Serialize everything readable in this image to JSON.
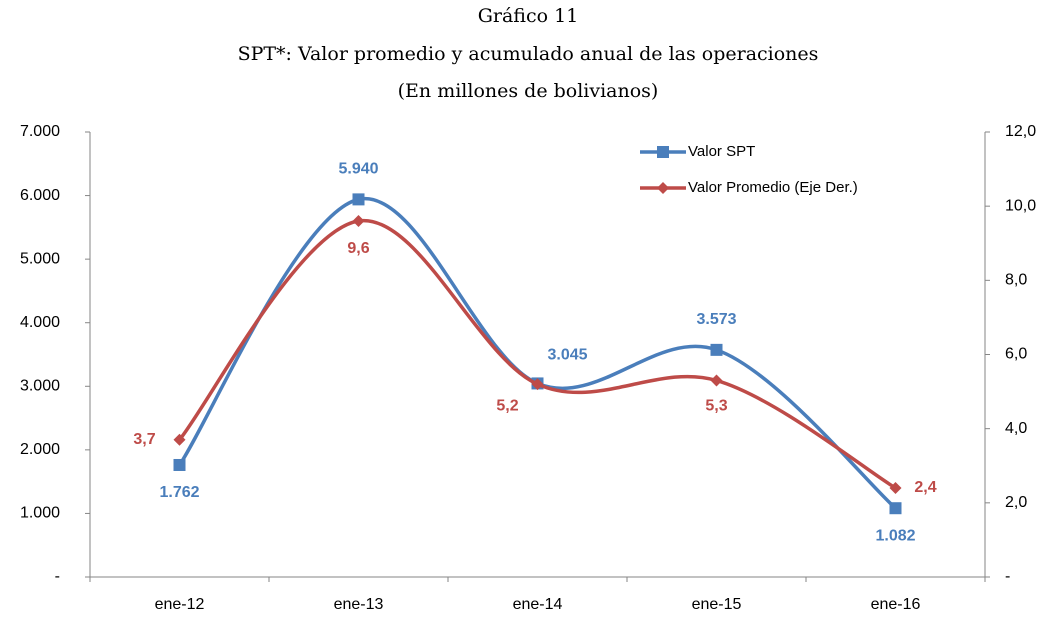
{
  "chart_data": {
    "type": "line",
    "title": "Gráfico 11",
    "subtitle": "SPT*: Valor promedio y acumulado anual de las operaciones",
    "unit_label": "(En millones de bolivianos)",
    "categories": [
      "ene-12",
      "ene-13",
      "ene-14",
      "ene-15",
      "ene-16"
    ],
    "series": [
      {
        "name": "Valor SPT",
        "color": "#4a7ebb",
        "marker": "square",
        "values": [
          1762,
          5940,
          3045,
          3573,
          1082
        ],
        "value_labels": [
          "1.762",
          "5.940",
          "3.045",
          "3.573",
          "1.082"
        ]
      },
      {
        "name": "Valor Promedio (Eje Der.)",
        "color": "#be4b48",
        "marker": "diamond",
        "axis": "y2",
        "values": [
          3.7,
          9.6,
          5.2,
          5.3,
          2.4
        ],
        "value_labels": [
          "3,7",
          "9,6",
          "5,2",
          "5,3",
          "2,4"
        ]
      }
    ],
    "ylim": [
      0,
      7000
    ],
    "yticks": [
      {
        "value": 0,
        "label": "-"
      },
      {
        "value": 1000,
        "label": "1.000"
      },
      {
        "value": 2000,
        "label": "2.000"
      },
      {
        "value": 3000,
        "label": "3.000"
      },
      {
        "value": 4000,
        "label": "4.000"
      },
      {
        "value": 5000,
        "label": "5.000"
      },
      {
        "value": 6000,
        "label": "6.000"
      },
      {
        "value": 7000,
        "label": "7.000"
      }
    ],
    "y2lim": [
      0,
      12
    ],
    "y2ticks": [
      {
        "value": 0,
        "label": "-"
      },
      {
        "value": 2,
        "label": "2,0"
      },
      {
        "value": 4,
        "label": "4,0"
      },
      {
        "value": 6,
        "label": "6,0"
      },
      {
        "value": 8,
        "label": "8,0"
      },
      {
        "value": 10,
        "label": "10,0"
      },
      {
        "value": 12,
        "label": "12,0"
      }
    ],
    "smooth": true,
    "grid": false,
    "legend": "upper right"
  }
}
